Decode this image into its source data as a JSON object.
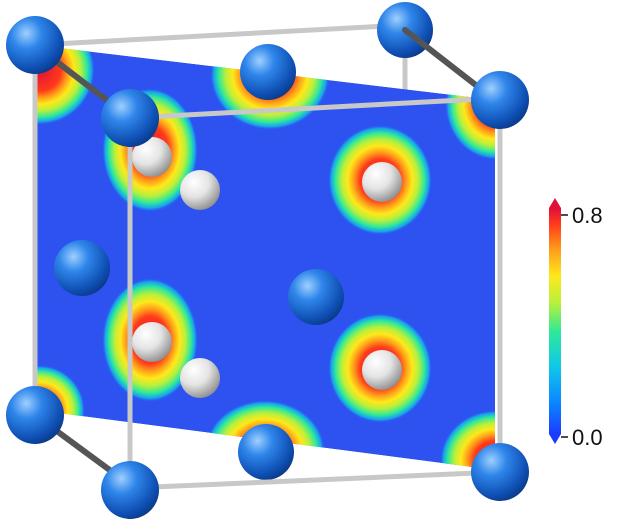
{
  "colorbar": {
    "max_label": "0.8",
    "min_label": "0.0",
    "colormap": [
      "#1a3cff",
      "#0a8cff",
      "#10c8e8",
      "#2ee89a",
      "#b8f03c",
      "#ffe81a",
      "#ff9a1a",
      "#ff3a1a",
      "#e0103a"
    ]
  },
  "colors": {
    "plane_background": "#2d52f0",
    "large_atom": "#1b64d8",
    "small_atom": "#e6e6e6",
    "cell_edge": "#c8c8c8",
    "axis_rod": "#555555"
  }
}
